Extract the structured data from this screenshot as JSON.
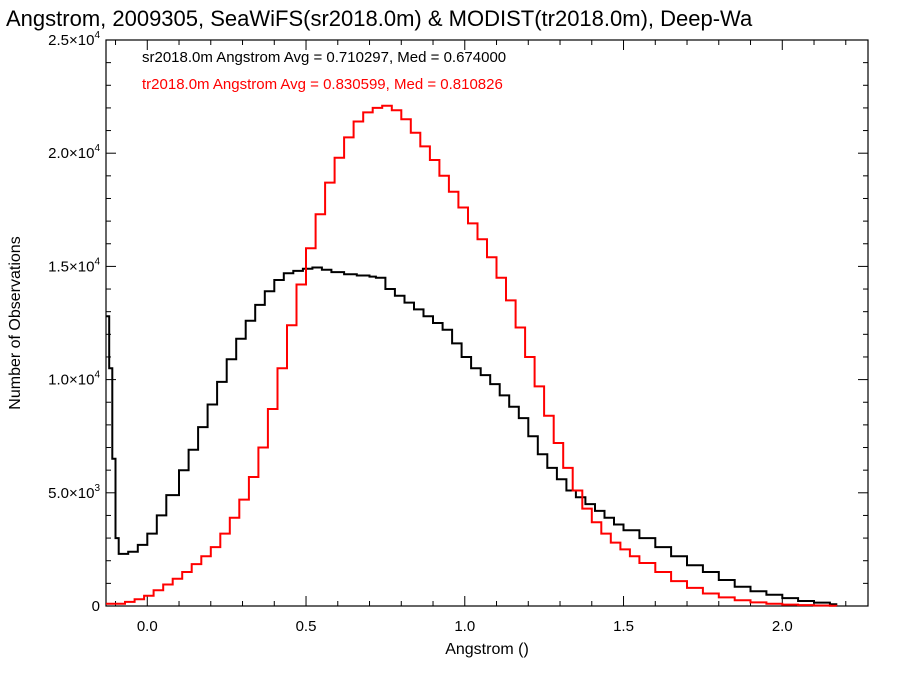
{
  "chart_data": {
    "type": "line",
    "title": "Angstrom, 2009305, SeaWiFS(sr2018.0m) & MODIST(tr2018.0m), Deep-Wa",
    "xlabel": "Angstrom ()",
    "ylabel": "Number of Observations",
    "xlim": [
      -0.13,
      2.27
    ],
    "ylim": [
      0,
      25000
    ],
    "x_ticks": [
      {
        "value": 0.0,
        "label": "0.0"
      },
      {
        "value": 0.5,
        "label": "0.5"
      },
      {
        "value": 1.0,
        "label": "1.0"
      },
      {
        "value": 1.5,
        "label": "1.5"
      },
      {
        "value": 2.0,
        "label": "2.0"
      }
    ],
    "y_ticks": [
      {
        "value": 0,
        "mantissa": "0",
        "exp": ""
      },
      {
        "value": 5000,
        "mantissa": "5.0×10",
        "exp": "3"
      },
      {
        "value": 10000,
        "mantissa": "1.0×10",
        "exp": "4"
      },
      {
        "value": 15000,
        "mantissa": "1.5×10",
        "exp": "4"
      },
      {
        "value": 20000,
        "mantissa": "2.0×10",
        "exp": "4"
      },
      {
        "value": 25000,
        "mantissa": "2.5×10",
        "exp": "4"
      }
    ],
    "grid": false,
    "legend_position": "top-left",
    "series": [
      {
        "name": "sr2018.0m Angstrom Avg = 0.710297, Med = 0.674000",
        "color": "#000000",
        "step": true,
        "points": [
          [
            -0.13,
            12800
          ],
          [
            -0.12,
            10500
          ],
          [
            -0.11,
            6500
          ],
          [
            -0.1,
            3000
          ],
          [
            -0.09,
            2300
          ],
          [
            -0.06,
            2400
          ],
          [
            -0.03,
            2700
          ],
          [
            0.0,
            3200
          ],
          [
            0.03,
            4000
          ],
          [
            0.06,
            4900
          ],
          [
            0.1,
            6000
          ],
          [
            0.13,
            6900
          ],
          [
            0.16,
            7900
          ],
          [
            0.19,
            8900
          ],
          [
            0.22,
            9900
          ],
          [
            0.25,
            10900
          ],
          [
            0.28,
            11800
          ],
          [
            0.31,
            12600
          ],
          [
            0.34,
            13300
          ],
          [
            0.37,
            13900
          ],
          [
            0.4,
            14400
          ],
          [
            0.43,
            14700
          ],
          [
            0.46,
            14800
          ],
          [
            0.49,
            14900
          ],
          [
            0.52,
            14950
          ],
          [
            0.55,
            14850
          ],
          [
            0.58,
            14750
          ],
          [
            0.62,
            14650
          ],
          [
            0.66,
            14600
          ],
          [
            0.7,
            14550
          ],
          [
            0.72,
            14500
          ],
          [
            0.75,
            14000
          ],
          [
            0.78,
            13700
          ],
          [
            0.81,
            13400
          ],
          [
            0.84,
            13100
          ],
          [
            0.87,
            12800
          ],
          [
            0.9,
            12500
          ],
          [
            0.93,
            12200
          ],
          [
            0.96,
            11600
          ],
          [
            0.99,
            11000
          ],
          [
            1.02,
            10500
          ],
          [
            1.05,
            10200
          ],
          [
            1.08,
            9800
          ],
          [
            1.11,
            9300
          ],
          [
            1.14,
            8800
          ],
          [
            1.17,
            8300
          ],
          [
            1.2,
            7500
          ],
          [
            1.23,
            6700
          ],
          [
            1.26,
            6100
          ],
          [
            1.29,
            5600
          ],
          [
            1.32,
            5100
          ],
          [
            1.35,
            4800
          ],
          [
            1.38,
            4500
          ],
          [
            1.41,
            4200
          ],
          [
            1.44,
            3900
          ],
          [
            1.47,
            3600
          ],
          [
            1.5,
            3350
          ],
          [
            1.55,
            3000
          ],
          [
            1.6,
            2600
          ],
          [
            1.65,
            2200
          ],
          [
            1.7,
            1800
          ],
          [
            1.75,
            1500
          ],
          [
            1.8,
            1150
          ],
          [
            1.85,
            850
          ],
          [
            1.9,
            650
          ],
          [
            1.95,
            500
          ],
          [
            2.0,
            350
          ],
          [
            2.05,
            220
          ],
          [
            2.1,
            150
          ],
          [
            2.15,
            80
          ]
        ]
      },
      {
        "name": "tr2018.0m Angstrom Avg = 0.830599, Med = 0.810826",
        "color": "#ff0000",
        "step": true,
        "points": [
          [
            -0.13,
            100
          ],
          [
            -0.1,
            100
          ],
          [
            -0.07,
            180
          ],
          [
            -0.04,
            300
          ],
          [
            -0.01,
            450
          ],
          [
            0.02,
            700
          ],
          [
            0.05,
            950
          ],
          [
            0.08,
            1200
          ],
          [
            0.11,
            1500
          ],
          [
            0.14,
            1850
          ],
          [
            0.17,
            2200
          ],
          [
            0.2,
            2600
          ],
          [
            0.23,
            3200
          ],
          [
            0.26,
            3900
          ],
          [
            0.29,
            4700
          ],
          [
            0.32,
            5700
          ],
          [
            0.35,
            7000
          ],
          [
            0.38,
            8700
          ],
          [
            0.41,
            10500
          ],
          [
            0.44,
            12400
          ],
          [
            0.47,
            14200
          ],
          [
            0.5,
            15800
          ],
          [
            0.53,
            17300
          ],
          [
            0.56,
            18700
          ],
          [
            0.59,
            19800
          ],
          [
            0.62,
            20700
          ],
          [
            0.65,
            21400
          ],
          [
            0.68,
            21800
          ],
          [
            0.71,
            22000
          ],
          [
            0.74,
            22100
          ],
          [
            0.77,
            21900
          ],
          [
            0.8,
            21500
          ],
          [
            0.83,
            20900
          ],
          [
            0.86,
            20300
          ],
          [
            0.89,
            19700
          ],
          [
            0.92,
            19000
          ],
          [
            0.95,
            18300
          ],
          [
            0.98,
            17600
          ],
          [
            1.01,
            16900
          ],
          [
            1.04,
            16200
          ],
          [
            1.07,
            15400
          ],
          [
            1.1,
            14500
          ],
          [
            1.13,
            13500
          ],
          [
            1.16,
            12300
          ],
          [
            1.19,
            11000
          ],
          [
            1.22,
            9700
          ],
          [
            1.25,
            8400
          ],
          [
            1.28,
            7200
          ],
          [
            1.31,
            6100
          ],
          [
            1.34,
            5100
          ],
          [
            1.37,
            4300
          ],
          [
            1.4,
            3700
          ],
          [
            1.43,
            3200
          ],
          [
            1.46,
            2800
          ],
          [
            1.49,
            2500
          ],
          [
            1.52,
            2200
          ],
          [
            1.55,
            1900
          ],
          [
            1.6,
            1500
          ],
          [
            1.65,
            1100
          ],
          [
            1.7,
            800
          ],
          [
            1.75,
            550
          ],
          [
            1.8,
            380
          ],
          [
            1.85,
            250
          ],
          [
            1.9,
            160
          ],
          [
            1.95,
            100
          ],
          [
            2.0,
            60
          ],
          [
            2.05,
            40
          ],
          [
            2.1,
            20
          ],
          [
            2.15,
            10
          ]
        ]
      }
    ]
  }
}
